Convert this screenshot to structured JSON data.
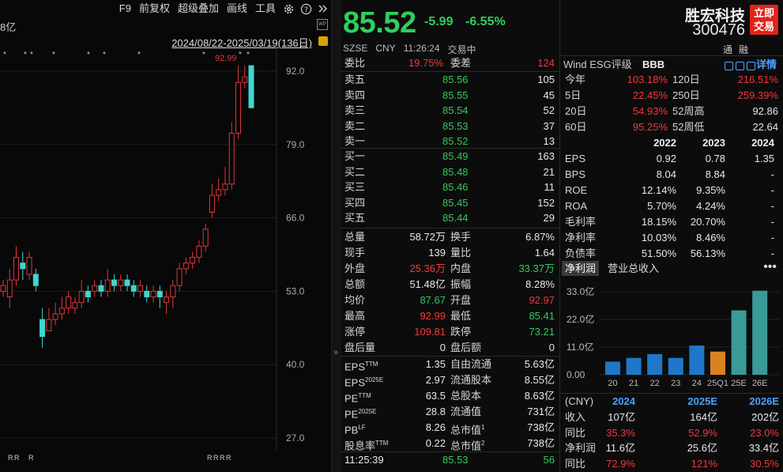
{
  "toolbar": {
    "items": [
      "F9",
      "前复权",
      "超级叠加",
      "画线",
      "工具"
    ]
  },
  "chart": {
    "cap_label": "8亿",
    "range": "2024/08/22-2025/03/19(136日)",
    "max_label": "92.99",
    "yticks": [
      "92.0",
      "79.0",
      "66.0",
      "53.0",
      "40.0",
      "27.0"
    ]
  },
  "quote": {
    "price": "85.52",
    "change": "-5.99",
    "change_pct": "-6.55%",
    "exchange": "SZSE",
    "currency": "CNY",
    "time": "11:26:24",
    "status": "交易中"
  },
  "book": {
    "weibi_label": "委比",
    "weibi": "19.75%",
    "weicha_label": "委差",
    "weicha": "124",
    "asks": [
      {
        "l": "卖五",
        "p": "85.56",
        "v": "105"
      },
      {
        "l": "卖四",
        "p": "85.55",
        "v": "45"
      },
      {
        "l": "卖三",
        "p": "85.54",
        "v": "52"
      },
      {
        "l": "卖二",
        "p": "85.53",
        "v": "37"
      },
      {
        "l": "卖一",
        "p": "85.52",
        "v": "13"
      }
    ],
    "bids": [
      {
        "l": "买一",
        "p": "85.49",
        "v": "163"
      },
      {
        "l": "买二",
        "p": "85.48",
        "v": "21"
      },
      {
        "l": "买三",
        "p": "85.46",
        "v": "11"
      },
      {
        "l": "买四",
        "p": "85.45",
        "v": "152"
      },
      {
        "l": "买五",
        "p": "85.44",
        "v": "29"
      }
    ]
  },
  "stats": [
    {
      "a": "总量",
      "av": "58.72万",
      "ac": "white",
      "b": "换手",
      "bv": "6.87%",
      "bc": "white"
    },
    {
      "a": "现手",
      "av": "139",
      "ac": "white",
      "b": "量比",
      "bv": "1.64",
      "bc": "white"
    },
    {
      "a": "外盘",
      "av": "25.36万",
      "ac": "red",
      "b": "内盘",
      "bv": "33.37万",
      "bc": "green"
    },
    {
      "a": "总额",
      "av": "51.48亿",
      "ac": "white",
      "b": "振幅",
      "bv": "8.28%",
      "bc": "white"
    },
    {
      "a": "均价",
      "av": "87.67",
      "ac": "green",
      "b": "开盘",
      "bv": "92.97",
      "bc": "red"
    },
    {
      "a": "最高",
      "av": "92.99",
      "ac": "red",
      "b": "最低",
      "bv": "85.41",
      "bc": "green"
    },
    {
      "a": "涨停",
      "av": "109.81",
      "ac": "red",
      "b": "跌停",
      "bv": "73.21",
      "bc": "green"
    },
    {
      "a": "盘后量",
      "av": "0",
      "ac": "white",
      "b": "盘后额",
      "bv": "0",
      "bc": "white"
    }
  ],
  "valuation": [
    {
      "a": "EPS",
      "as": "TTM",
      "av": "1.35",
      "b": "自由流通",
      "bv": "5.63亿"
    },
    {
      "a": "EPS",
      "as": "2025E",
      "av": "2.97",
      "b": "流通股本",
      "bv": "8.55亿"
    },
    {
      "a": "PE",
      "as": "TTM",
      "av": "63.5",
      "b": "总股本",
      "bv": "8.63亿"
    },
    {
      "a": "PE",
      "as": "2025E",
      "av": "28.8",
      "b": "流通值",
      "bv": "731亿"
    },
    {
      "a": "PB",
      "as": "LF",
      "av": "8.26",
      "b": "总市值",
      "bs": "1",
      "bv": "738亿"
    },
    {
      "a": "股息率",
      "as": "TTM",
      "av": "0.22",
      "b": "总市值",
      "bs": "2",
      "bv": "738亿"
    }
  ],
  "last_trade": {
    "time": "11:25:39",
    "price": "85.53",
    "vol": "56"
  },
  "stock": {
    "name": "胜宏科技",
    "code": "300476",
    "trade_btn": "立即交易",
    "trade_l1": "立即",
    "trade_l2": "交易",
    "misc": [
      "通",
      "融"
    ]
  },
  "esg": {
    "label": "Wind ESG评级",
    "rating": "BBB",
    "detail": "详情"
  },
  "perf": [
    {
      "a": "今年",
      "av": "103.18%",
      "b": "120日",
      "bv": "216.51%",
      "bc": "red"
    },
    {
      "a": "5日",
      "av": "22.45%",
      "b": "250日",
      "bv": "259.39%",
      "bc": "red"
    },
    {
      "a": "20日",
      "av": "54.93%",
      "b": "52周高",
      "bv": "92.86",
      "bc": "white"
    },
    {
      "a": "60日",
      "av": "95.25%",
      "b": "52周低",
      "bv": "22.64",
      "bc": "white"
    }
  ],
  "fin": {
    "years": [
      "2022",
      "2023",
      "2024"
    ],
    "rows": [
      {
        "l": "EPS",
        "v": [
          "0.92",
          "0.78",
          "1.35"
        ]
      },
      {
        "l": "BPS",
        "v": [
          "8.04",
          "8.84",
          "-"
        ]
      },
      {
        "l": "ROE",
        "v": [
          "12.14%",
          "9.35%",
          "-"
        ]
      },
      {
        "l": "ROA",
        "v": [
          "5.70%",
          "4.24%",
          "-"
        ]
      },
      {
        "l": "毛利率",
        "v": [
          "18.15%",
          "20.70%",
          "-"
        ]
      },
      {
        "l": "净利率",
        "v": [
          "10.03%",
          "8.46%",
          "-"
        ]
      },
      {
        "l": "负债率",
        "v": [
          "51.50%",
          "56.13%",
          "-"
        ]
      }
    ]
  },
  "tabs": [
    "净利润",
    "营业总收入"
  ],
  "chart_data": {
    "type": "bar",
    "categories": [
      "20",
      "21",
      "22",
      "23",
      "24",
      "25Q1",
      "25E",
      "26E"
    ],
    "values": [
      5.2,
      6.7,
      8.2,
      6.7,
      11.6,
      9.2,
      25.6,
      33.4
    ],
    "yticks": [
      "33.0亿",
      "22.0亿",
      "11.0亿",
      "0.00"
    ],
    "ylim": [
      0,
      33
    ]
  },
  "forecast": {
    "head": [
      "(CNY)",
      "2024",
      "2025E",
      "2026E"
    ],
    "rows": [
      {
        "l": "收入",
        "v": [
          "107亿",
          "164亿",
          "202亿"
        ],
        "c": [
          "white",
          "white",
          "white"
        ]
      },
      {
        "l": "同比",
        "v": [
          "35.3%",
          "52.9%",
          "23.0%"
        ],
        "c": [
          "red",
          "red",
          "red"
        ]
      },
      {
        "l": "净利润",
        "v": [
          "11.6亿",
          "25.6亿",
          "33.4亿"
        ],
        "c": [
          "white",
          "white",
          "white"
        ]
      },
      {
        "l": "同比",
        "v": [
          "72.9%",
          "121%",
          "30.5%"
        ],
        "c": [
          "red",
          "red",
          "red"
        ]
      }
    ]
  }
}
